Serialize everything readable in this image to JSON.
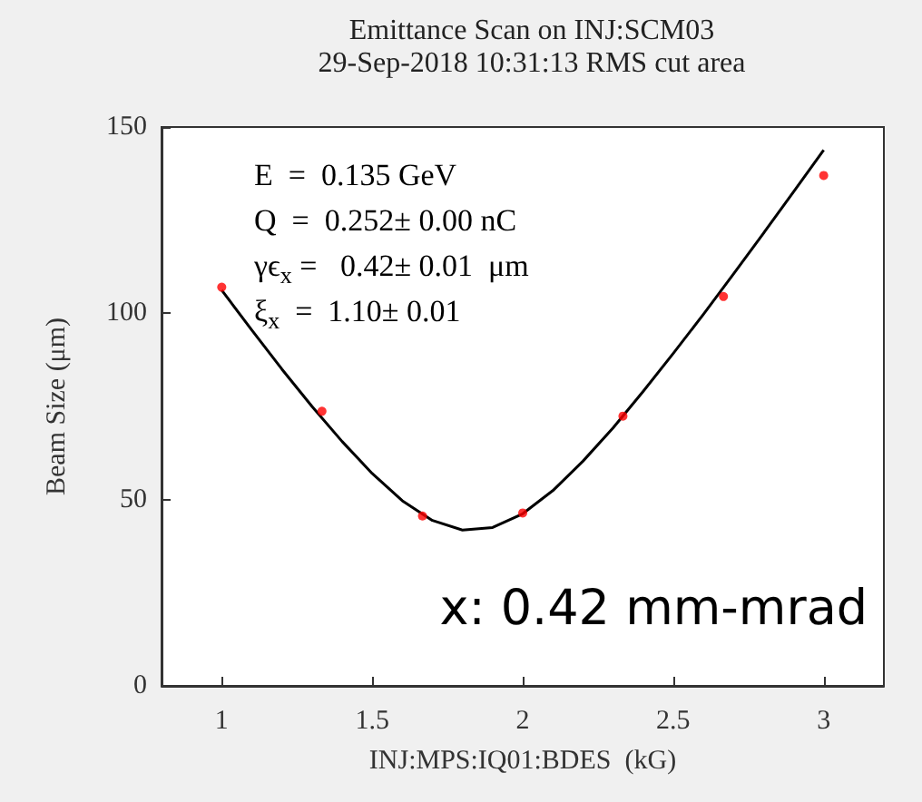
{
  "chart_data": {
    "type": "scatter",
    "title": "Emittance Scan on INJ:SCM03",
    "subtitle": "29-Sep-2018 10:31:13 RMS cut area",
    "xlabel": "INJ:MPS:IQ01:BDES  (kG)",
    "ylabel": "Beam Size (μm)",
    "x": [
      1,
      1.333,
      1.667,
      2,
      2.333,
      2.667,
      3
    ],
    "series": [
      {
        "color": "#ff0000",
        "marker": "circle",
        "values": [
          107,
          73.7,
          45.6,
          46.4,
          72.4,
          104.5,
          137
        ]
      },
      {
        "type": "line",
        "color": "#000000",
        "marker": "none",
        "x": [
          1,
          1.1,
          1.2,
          1.3,
          1.4,
          1.5,
          1.6,
          1.7,
          1.8,
          1.9,
          2.0,
          2.1,
          2.2,
          2.3,
          2.4,
          2.5,
          2.6,
          2.7,
          2.8,
          2.9,
          3.0
        ],
        "values": [
          106.2,
          95.5,
          85.0,
          75.0,
          65.6,
          57.0,
          49.7,
          44.4,
          41.8,
          42.5,
          46.2,
          52.4,
          60.3,
          69.2,
          79.0,
          89.2,
          99.7,
          110.5,
          121.5,
          132.6,
          143.8
        ]
      }
    ],
    "xlim": [
      0.8,
      3.2
    ],
    "xticks": [
      1,
      1.5,
      2,
      2.5,
      3
    ],
    "ylim": [
      0,
      150
    ],
    "yticks": [
      0,
      50,
      100,
      150
    ],
    "grid": false,
    "annotations": [
      "E  =  0.135 GeV",
      "Q  =  0.252± 0.00 nC",
      "γϵ$_{x}$ =   0.42± 0.01  μm",
      "ξ$_{x}$  =  1.10± 0.01",
      "x: 0.42 mm-mrad"
    ]
  }
}
